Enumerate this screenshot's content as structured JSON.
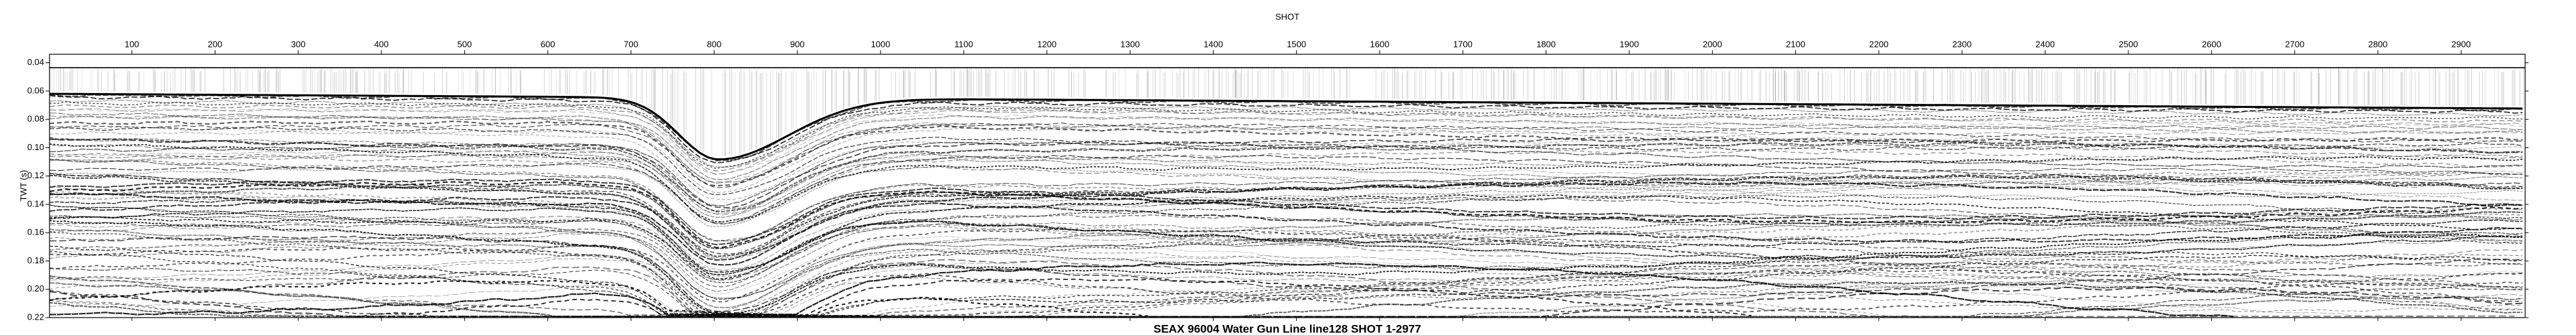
{
  "chart_data": {
    "type": "seismic",
    "title": "SEAX 96004 Water Gun Line line128 SHOT 1-2977",
    "x_label": "SHOT",
    "y_label": "TWT (s)",
    "xlim": [
      1,
      2977
    ],
    "xticks": [
      100,
      200,
      300,
      400,
      500,
      600,
      700,
      800,
      900,
      1000,
      1100,
      1200,
      1300,
      1400,
      1500,
      1600,
      1700,
      1800,
      1900,
      2000,
      2100,
      2200,
      2300,
      2400,
      2500,
      2600,
      2700,
      2800,
      2900
    ],
    "ylim": [
      0.034,
      0.22
    ],
    "yticks": [
      0.04,
      0.06,
      0.08,
      {
        "value": 0.1,
        "label": "0.10"
      },
      0.12,
      0.14,
      0.16,
      0.18,
      {
        "value": 0.2,
        "label": "0.20"
      },
      0.22
    ],
    "y_inverted": true,
    "color": "#000000"
  }
}
